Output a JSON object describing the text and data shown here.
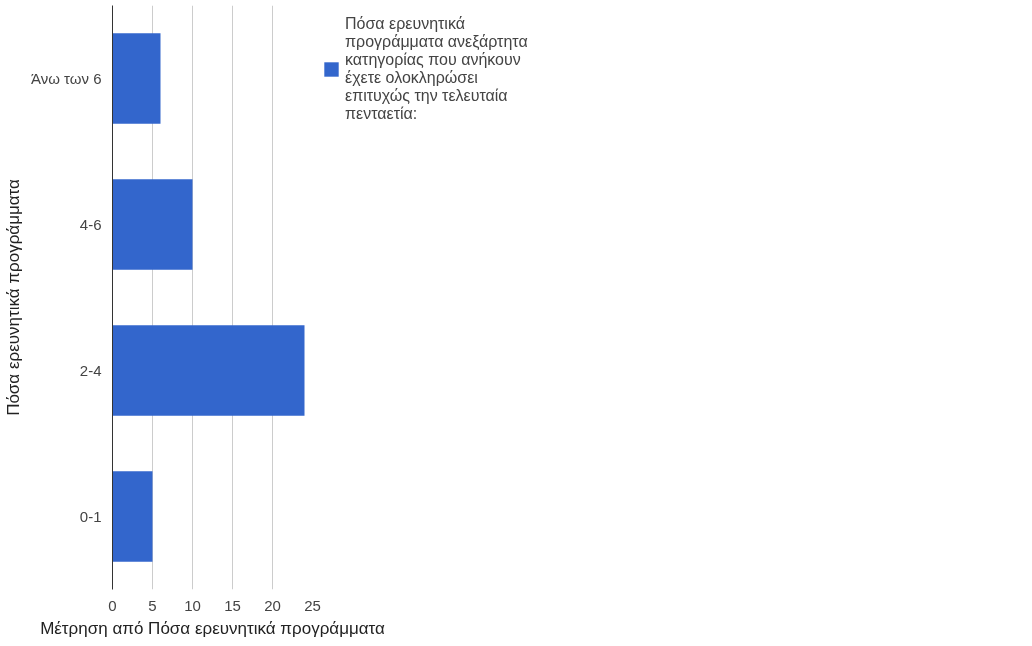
{
  "chart_data": {
    "type": "bar",
    "orientation": "horizontal",
    "categories": [
      "Άνω των 6",
      "4-6",
      "2-4",
      "0-1"
    ],
    "series": [
      {
        "name": "Πόσα ερευνητικά προγράμματα ανεξάρτητα κατηγορίας που ανήκουν έχετε ολοκληρώσει επιτυχώς την τελευταία πενταετία:",
        "color": "#3366cc",
        "values": [
          6,
          10,
          24,
          5
        ]
      }
    ],
    "xlim": [
      0,
      25
    ],
    "xticks": [
      0,
      5,
      10,
      15,
      20,
      25
    ],
    "xlabel": "Μέτρηση από Πόσα ερευνητικά προγράμματα",
    "ylabel": "Πόσα ερευνητικά προγράμματα",
    "grid": "x",
    "legend": "right"
  }
}
